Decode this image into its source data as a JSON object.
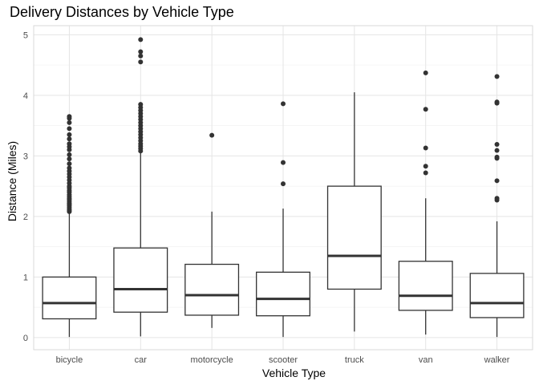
{
  "chart_data": {
    "type": "boxplot",
    "title": "Delivery Distances by Vehicle Type",
    "xlabel": "Vehicle Type",
    "ylabel": "Distance (Miles)",
    "ylim": [
      -0.2,
      5.15
    ],
    "yticks": [
      0,
      1,
      2,
      3,
      4,
      5
    ],
    "grid": true,
    "categories": [
      "bicycle",
      "car",
      "motorcycle",
      "scooter",
      "truck",
      "van",
      "walker"
    ],
    "boxes": [
      {
        "category": "bicycle",
        "whisker_low": 0.01,
        "q1": 0.31,
        "median": 0.57,
        "q3": 1.0,
        "whisker_high": 2.05,
        "outliers": [
          2.08,
          2.1,
          2.12,
          2.15,
          2.18,
          2.2,
          2.22,
          2.25,
          2.28,
          2.3,
          2.33,
          2.36,
          2.4,
          2.43,
          2.47,
          2.5,
          2.55,
          2.6,
          2.65,
          2.7,
          2.75,
          2.8,
          2.87,
          2.95,
          3.02,
          3.1,
          3.15,
          3.2,
          3.28,
          3.35,
          3.45,
          3.55,
          3.62,
          3.65
        ]
      },
      {
        "category": "car",
        "whisker_low": 0.02,
        "q1": 0.42,
        "median": 0.8,
        "q3": 1.48,
        "whisker_high": 3.05,
        "outliers": [
          3.08,
          3.12,
          3.16,
          3.2,
          3.25,
          3.3,
          3.35,
          3.4,
          3.45,
          3.5,
          3.55,
          3.6,
          3.65,
          3.7,
          3.75,
          3.8,
          3.85,
          4.55,
          4.65,
          4.72,
          4.92
        ]
      },
      {
        "category": "motorcycle",
        "whisker_low": 0.16,
        "q1": 0.37,
        "median": 0.7,
        "q3": 1.21,
        "whisker_high": 2.08,
        "outliers": [
          3.34
        ]
      },
      {
        "category": "scooter",
        "whisker_low": 0.01,
        "q1": 0.36,
        "median": 0.64,
        "q3": 1.08,
        "whisker_high": 2.13,
        "outliers": [
          2.54,
          2.89,
          3.86
        ]
      },
      {
        "category": "truck",
        "whisker_low": 0.1,
        "q1": 0.8,
        "median": 1.35,
        "q3": 2.5,
        "whisker_high": 4.05,
        "outliers": []
      },
      {
        "category": "van",
        "whisker_low": 0.05,
        "q1": 0.45,
        "median": 0.69,
        "q3": 1.26,
        "whisker_high": 2.3,
        "outliers": [
          2.72,
          2.83,
          3.13,
          3.77,
          4.37
        ]
      },
      {
        "category": "walker",
        "whisker_low": 0.01,
        "q1": 0.33,
        "median": 0.57,
        "q3": 1.06,
        "whisker_high": 1.92,
        "outliers": [
          2.27,
          2.3,
          2.59,
          2.96,
          2.98,
          3.09,
          3.19,
          3.87,
          3.89,
          4.31
        ]
      }
    ]
  }
}
